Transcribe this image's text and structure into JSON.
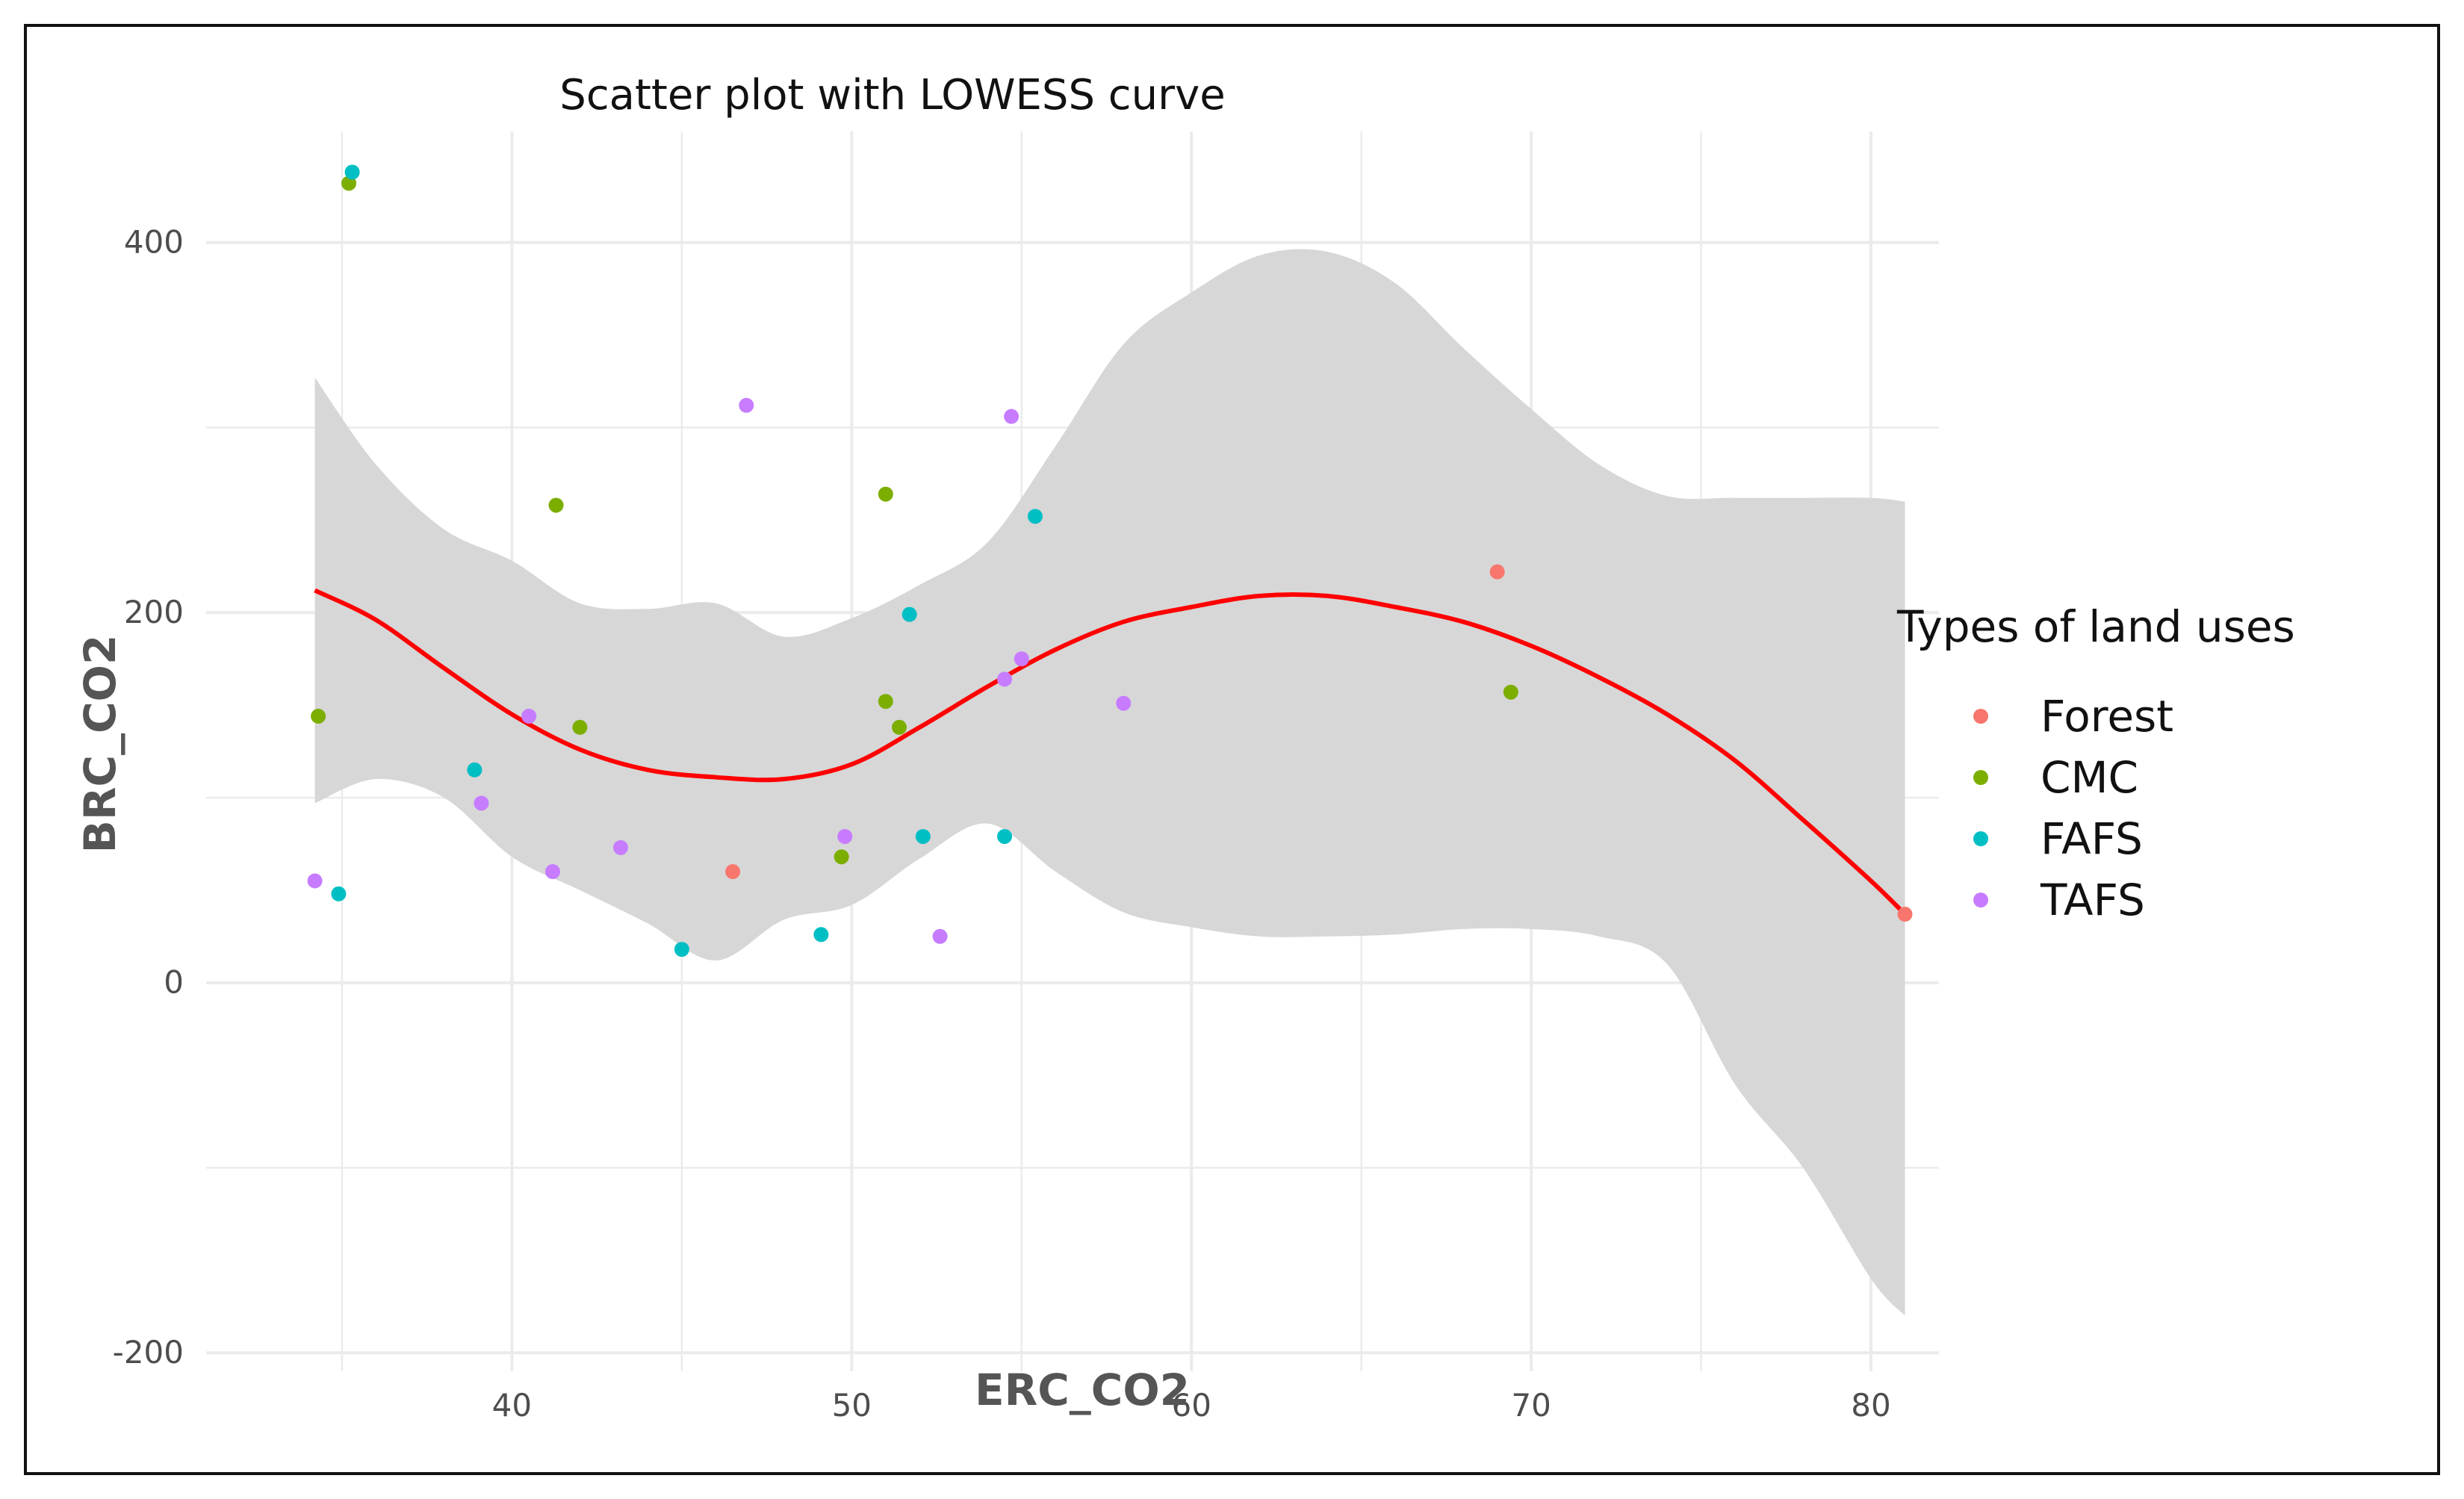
{
  "chart_data": {
    "type": "scatter",
    "title": "Scatter plot with LOWESS curve",
    "xlabel": "ERC_CO2",
    "ylabel": "BRC_CO2",
    "xlim": [
      31,
      82
    ],
    "ylim": [
      -210,
      460
    ],
    "x_ticks": [
      40,
      50,
      60,
      70,
      80
    ],
    "y_ticks": [
      -200,
      0,
      200,
      400
    ],
    "x_tick_labels": [
      "40",
      "50",
      "60",
      "70",
      "80"
    ],
    "y_tick_labels": [
      "-200",
      "0",
      "200",
      "400"
    ],
    "grid": true,
    "legend": {
      "title": "Types of land uses",
      "position": "right",
      "entries": [
        {
          "name": "Forest",
          "color": "#F8766D"
        },
        {
          "name": "CMC",
          "color": "#7CAE00"
        },
        {
          "name": "FAFS",
          "color": "#00BFC4"
        },
        {
          "name": "TAFS",
          "color": "#C77CFF"
        }
      ]
    },
    "series": [
      {
        "name": "Forest",
        "color": "#F8766D",
        "points": [
          [
            46.5,
            60
          ],
          [
            69.0,
            222
          ],
          [
            81.0,
            37
          ]
        ]
      },
      {
        "name": "CMC",
        "color": "#7CAE00",
        "points": [
          [
            35.2,
            432
          ],
          [
            34.3,
            144
          ],
          [
            41.3,
            258
          ],
          [
            42.0,
            138
          ],
          [
            51.0,
            264
          ],
          [
            51.0,
            152
          ],
          [
            51.4,
            138
          ],
          [
            49.7,
            68
          ],
          [
            69.4,
            157
          ]
        ]
      },
      {
        "name": "FAFS",
        "color": "#00BFC4",
        "points": [
          [
            35.3,
            438
          ],
          [
            34.9,
            48
          ],
          [
            38.9,
            115
          ],
          [
            45.0,
            18
          ],
          [
            49.1,
            26
          ],
          [
            52.1,
            79
          ],
          [
            51.7,
            199
          ],
          [
            54.5,
            79
          ],
          [
            55.4,
            252
          ]
        ]
      },
      {
        "name": "TAFS",
        "color": "#C77CFF",
        "points": [
          [
            34.2,
            55
          ],
          [
            39.1,
            97
          ],
          [
            40.5,
            144
          ],
          [
            41.2,
            60
          ],
          [
            43.2,
            73
          ],
          [
            46.9,
            312
          ],
          [
            49.8,
            79
          ],
          [
            52.6,
            25
          ],
          [
            54.5,
            164
          ],
          [
            54.7,
            306
          ],
          [
            55.0,
            175
          ],
          [
            58.0,
            151
          ]
        ]
      }
    ],
    "lowess": {
      "color": "#ff0000",
      "x": [
        34.2,
        36,
        38,
        40,
        42,
        44,
        46,
        48,
        50,
        52,
        54,
        56,
        58,
        60,
        62,
        64,
        66,
        68,
        70,
        72,
        74,
        76,
        78,
        80,
        81
      ],
      "y": [
        212,
        196,
        170,
        145,
        126,
        115,
        111,
        110,
        118,
        138,
        160,
        180,
        195,
        203,
        209,
        209,
        203,
        195,
        182,
        165,
        145,
        120,
        88,
        55,
        37
      ],
      "ci_upper": [
        327,
        280,
        245,
        228,
        205,
        202,
        205,
        187,
        197,
        215,
        238,
        290,
        345,
        373,
        393,
        395,
        378,
        343,
        310,
        280,
        263,
        262,
        262,
        262,
        260
      ],
      "ci_lower": [
        97,
        110,
        100,
        68,
        50,
        32,
        12,
        34,
        42,
        67,
        86,
        60,
        38,
        30,
        25,
        25,
        26,
        29,
        29,
        25,
        10,
        -55,
        -100,
        -160,
        -180
      ]
    }
  }
}
